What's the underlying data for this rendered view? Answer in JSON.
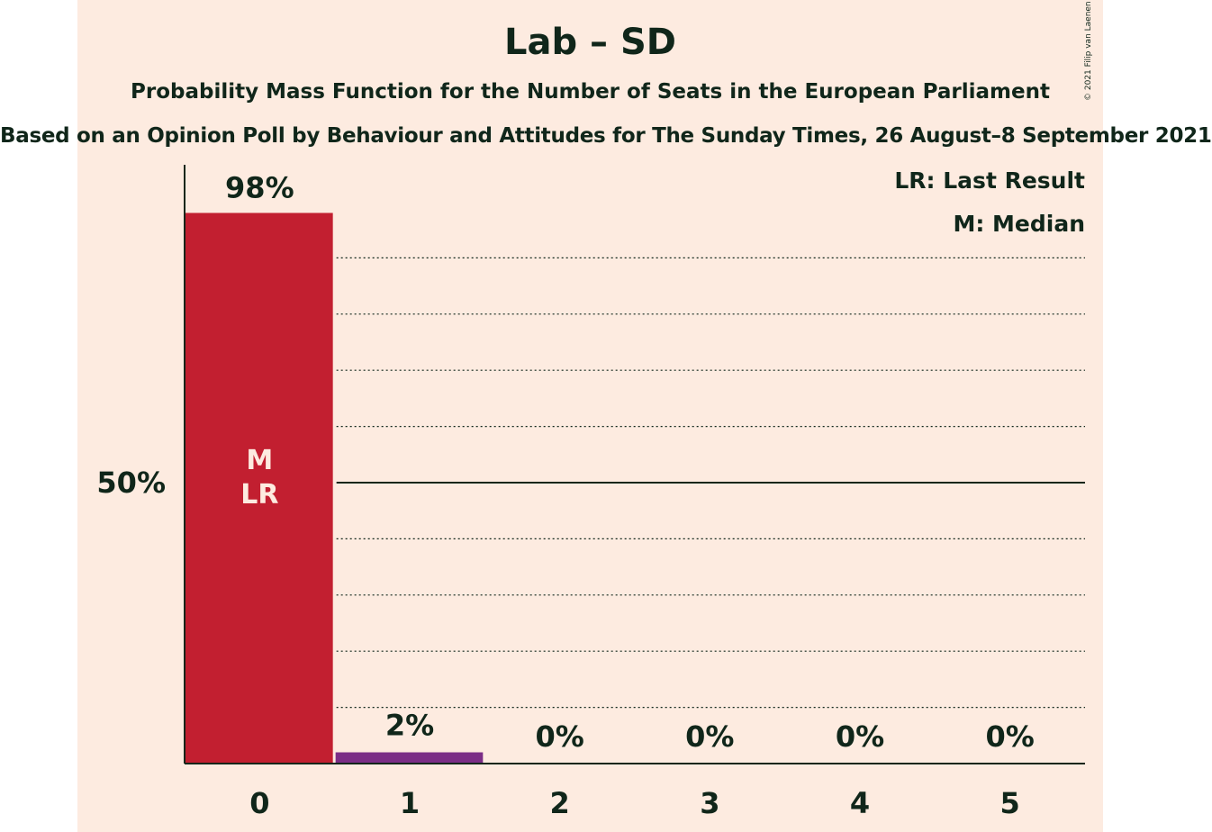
{
  "title": "Lab – SD",
  "subtitle": "Probability Mass Function for the Number of Seats in the European Parliament",
  "caption": "Based on an Opinion Poll by Behaviour and Attitudes for The Sunday Times, 26 August–8 September 2021",
  "copyright": "© 2021 Filip van Laenen",
  "legend": {
    "last_result": "LR: Last Result",
    "median": "M: Median"
  },
  "colors": {
    "background": "#fdebe0",
    "bar_primary": "#c21f30",
    "bar_secondary": "#7b2d86",
    "text": "#10261a"
  },
  "chart_data": {
    "type": "bar",
    "categories": [
      "0",
      "1",
      "2",
      "3",
      "4",
      "5"
    ],
    "values": [
      98,
      2,
      0,
      0,
      0,
      0
    ],
    "value_labels": [
      "98%",
      "2%",
      "0%",
      "0%",
      "0%",
      "0%"
    ],
    "bar_colors": [
      "#c21f30",
      "#7b2d86",
      "#7b2d86",
      "#7b2d86",
      "#7b2d86",
      "#7b2d86"
    ],
    "in_bar_labels": [
      [
        "M",
        "LR"
      ],
      [],
      [],
      [],
      [],
      []
    ],
    "ylim": [
      0,
      107
    ],
    "y_tick_label": "50%",
    "y_tick_value": 50,
    "gridlines": [
      10,
      20,
      30,
      40,
      60,
      70,
      80,
      90
    ],
    "major_gridline": 50,
    "grid": true,
    "legend_position": "top-right"
  }
}
